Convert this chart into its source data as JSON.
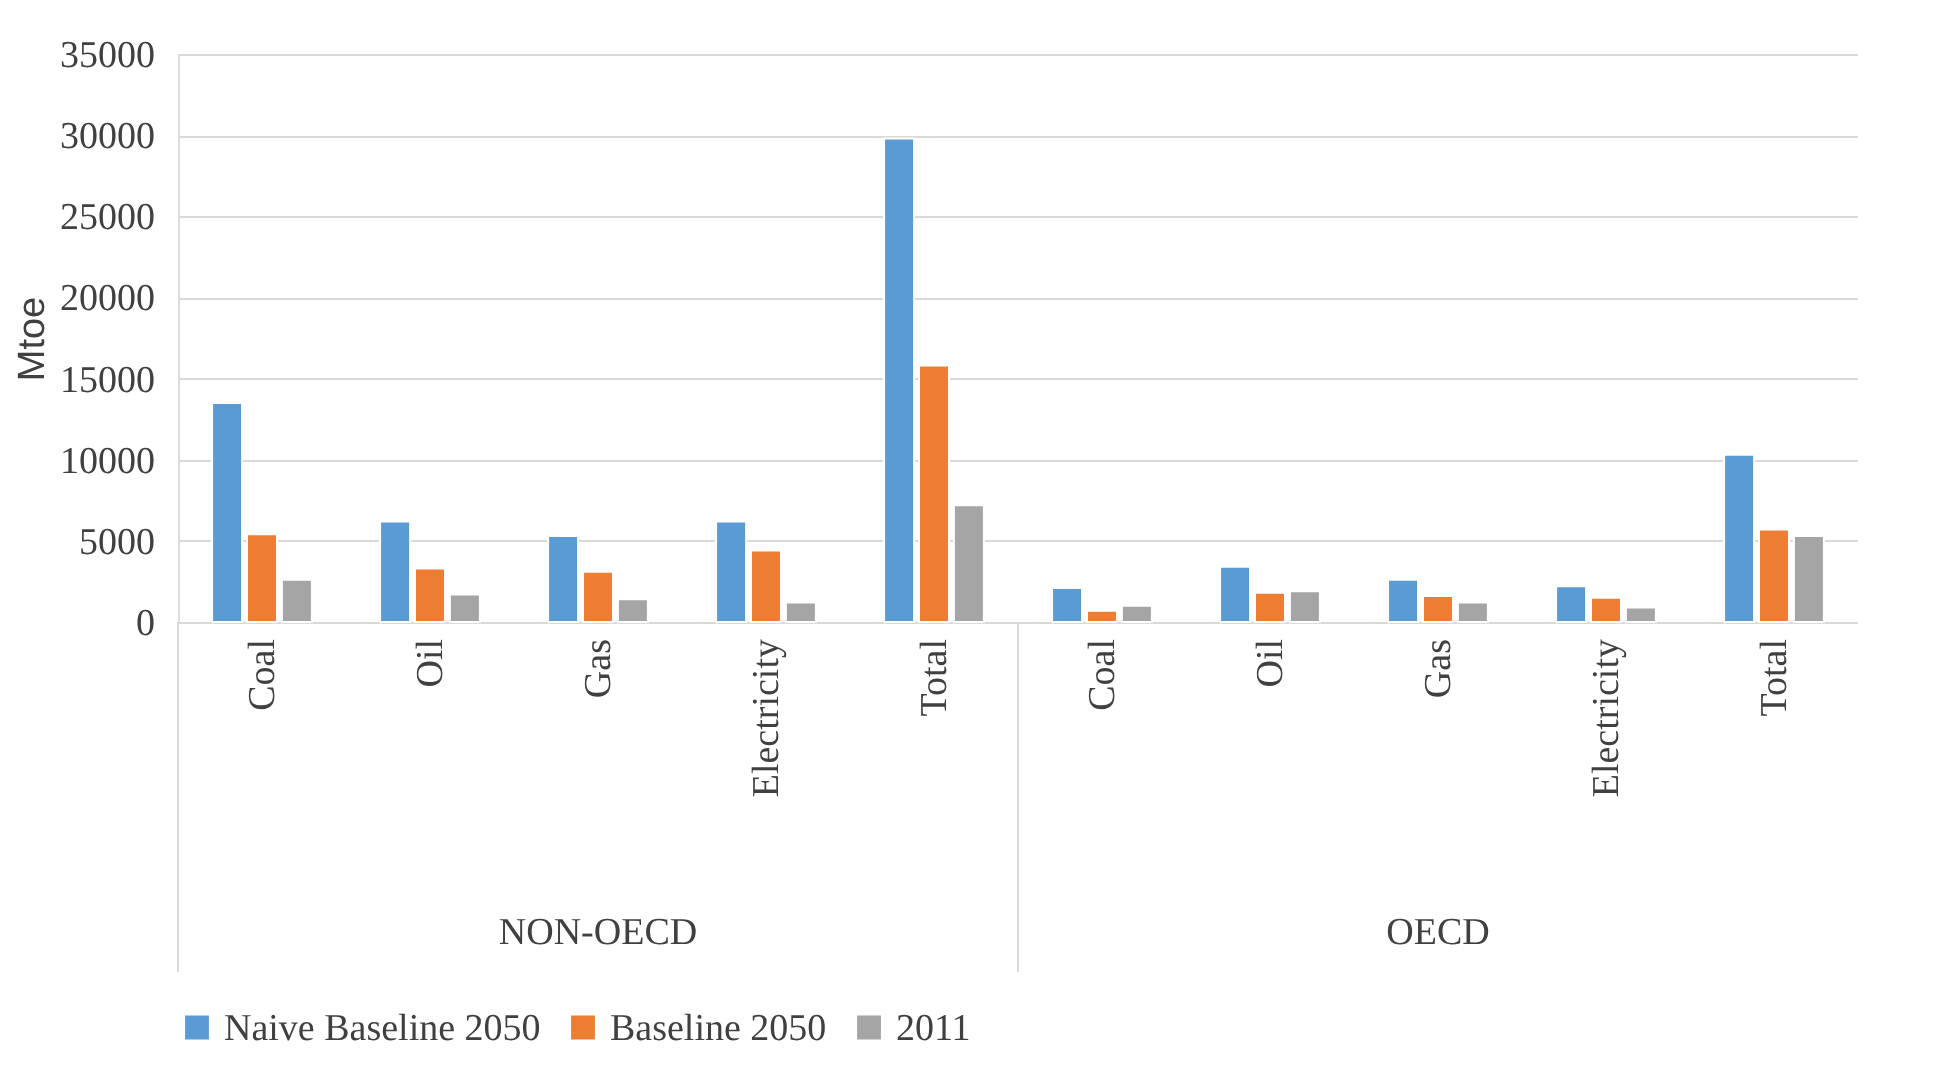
{
  "chart_data": {
    "type": "bar",
    "ylabel": "Mtoe",
    "categories": [
      "Coal",
      "Oil",
      "Gas",
      "Electricity",
      "Total",
      "Coal",
      "Oil",
      "Gas",
      "Electricity",
      "Total"
    ],
    "series": [
      {
        "name": "Naive Baseline 2050",
        "color": "#5b9bd5",
        "values": [
          13500,
          6200,
          5300,
          6200,
          29800,
          2100,
          3400,
          2600,
          2200,
          10300
        ]
      },
      {
        "name": "Baseline 2050",
        "color": "#ed7d31",
        "values": [
          5400,
          3300,
          3100,
          4400,
          15800,
          700,
          1800,
          1600,
          1500,
          5700
        ]
      },
      {
        "name": "2011",
        "color": "#a5a5a5",
        "values": [
          2600,
          1700,
          1400,
          1200,
          7200,
          1000,
          1900,
          1200,
          900,
          5300
        ]
      }
    ],
    "annotations": [
      "NON-OECD",
      "OECD"
    ],
    "ylim": [
      0,
      35000
    ],
    "yticks": [
      0,
      5000,
      10000,
      15000,
      20000,
      25000,
      30000,
      35000
    ],
    "grid": "y",
    "legend": "bottom"
  }
}
